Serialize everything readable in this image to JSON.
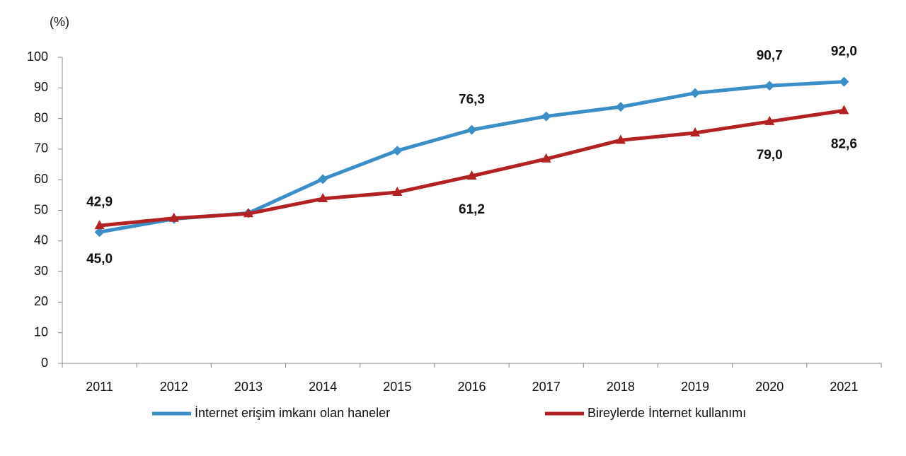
{
  "chart_data": {
    "type": "line",
    "y_axis_label": "(%)",
    "categories": [
      "2011",
      "2012",
      "2013",
      "2014",
      "2015",
      "2016",
      "2017",
      "2018",
      "2019",
      "2020",
      "2021"
    ],
    "series": [
      {
        "name": "İnternet erişim imkanı olan haneler",
        "color": "#3b8fc6",
        "marker": "diamond",
        "values": [
          42.9,
          47.2,
          49.1,
          60.2,
          69.5,
          76.3,
          80.7,
          83.8,
          88.3,
          90.7,
          92.0
        ],
        "value_labels": [
          "42,9",
          null,
          null,
          null,
          null,
          "76,3",
          null,
          null,
          null,
          "90,7",
          "92,0"
        ]
      },
      {
        "name": "Bireylerde İnternet kullanımı",
        "color": "#b22222",
        "marker": "triangle",
        "values": [
          45.0,
          47.4,
          48.9,
          53.8,
          55.9,
          61.2,
          66.8,
          72.9,
          75.3,
          79.0,
          82.6
        ],
        "value_labels": [
          "45,0",
          null,
          null,
          null,
          null,
          "61,2",
          null,
          null,
          null,
          "79,0",
          "82,6"
        ]
      }
    ],
    "ylim": [
      0,
      100
    ],
    "yticks": [
      0,
      10,
      20,
      30,
      40,
      50,
      60,
      70,
      80,
      90,
      100
    ],
    "grid": false
  }
}
